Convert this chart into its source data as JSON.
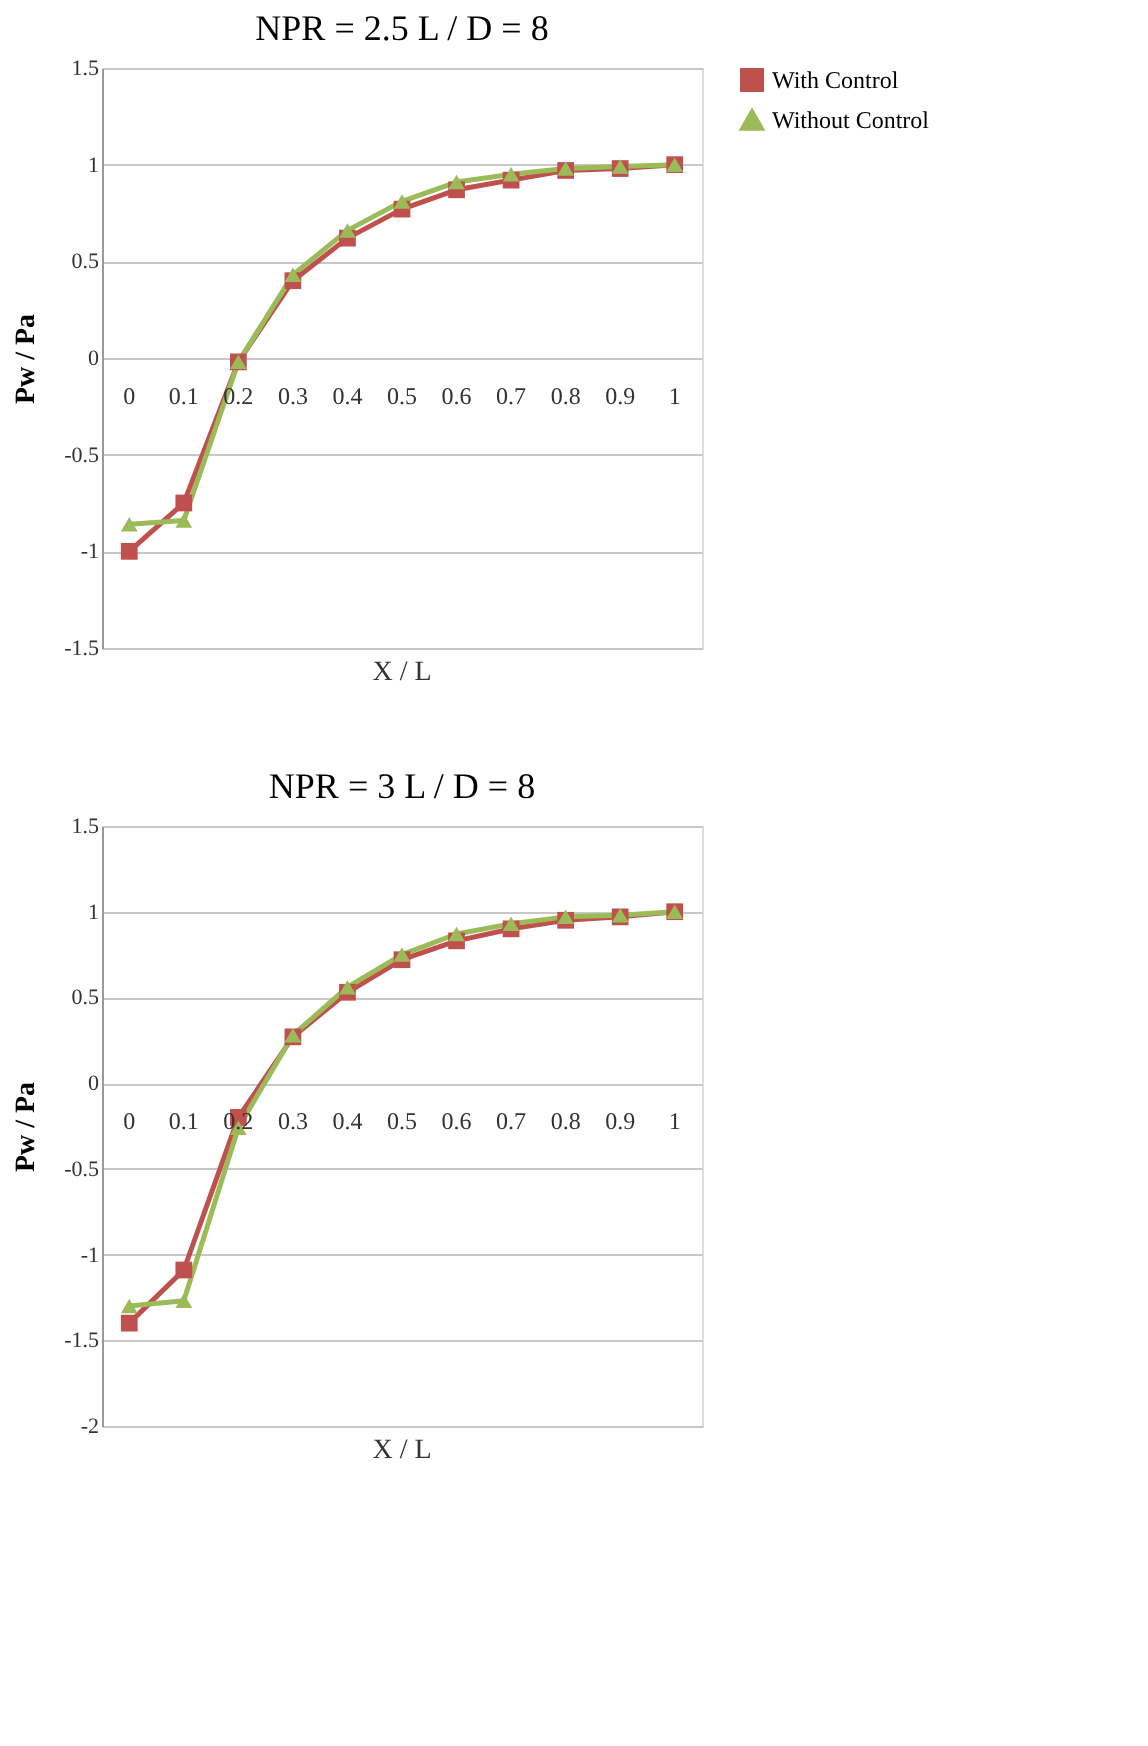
{
  "chart_data": [
    {
      "type": "line",
      "title": "NPR = 2.5 L / D = 8",
      "xlabel": "X / L",
      "ylabel": "Pw / Pa",
      "categories": [
        "0",
        "0.1",
        "0.2",
        "0.3",
        "0.4",
        "0.5",
        "0.6",
        "0.7",
        "0.8",
        "0.9",
        "1"
      ],
      "ylim": [
        -1.5,
        1.5
      ],
      "yticks": [
        -1.5,
        -1,
        -0.5,
        0,
        0.5,
        1,
        1.5
      ],
      "grid": "y",
      "legend": "right",
      "series": [
        {
          "name": "With Control",
          "color": "#c0504d",
          "marker": "square",
          "values": [
            -1.0,
            -0.75,
            -0.02,
            0.4,
            0.62,
            0.77,
            0.87,
            0.92,
            0.97,
            0.98,
            1.0
          ]
        },
        {
          "name": "Without Control",
          "color": "#9bbb59",
          "marker": "triangle",
          "values": [
            -0.86,
            -0.84,
            -0.02,
            0.43,
            0.66,
            0.81,
            0.91,
            0.95,
            0.98,
            0.99,
            1.0
          ]
        }
      ]
    },
    {
      "type": "line",
      "title": "NPR = 3 L / D = 8",
      "xlabel": "X / L",
      "ylabel": "Pw / Pa",
      "categories": [
        "0",
        "0.1",
        "0.2",
        "0.3",
        "0.4",
        "0.5",
        "0.6",
        "0.7",
        "0.8",
        "0.9",
        "1"
      ],
      "ylim": [
        -2,
        1.5
      ],
      "yticks": [
        -2,
        -1.5,
        -1,
        -0.5,
        0,
        0.5,
        1,
        1.5
      ],
      "grid": "y",
      "legend": "right",
      "series": [
        {
          "name": "With Control",
          "color": "#c0504d",
          "marker": "square",
          "values": [
            -1.4,
            -1.09,
            -0.2,
            0.27,
            0.53,
            0.72,
            0.83,
            0.9,
            0.95,
            0.97,
            1.0
          ]
        },
        {
          "name": "Without Control",
          "color": "#9bbb59",
          "marker": "triangle",
          "values": [
            -1.3,
            -1.27,
            -0.26,
            0.28,
            0.56,
            0.75,
            0.87,
            0.93,
            0.97,
            0.98,
            1.0
          ]
        }
      ]
    }
  ]
}
